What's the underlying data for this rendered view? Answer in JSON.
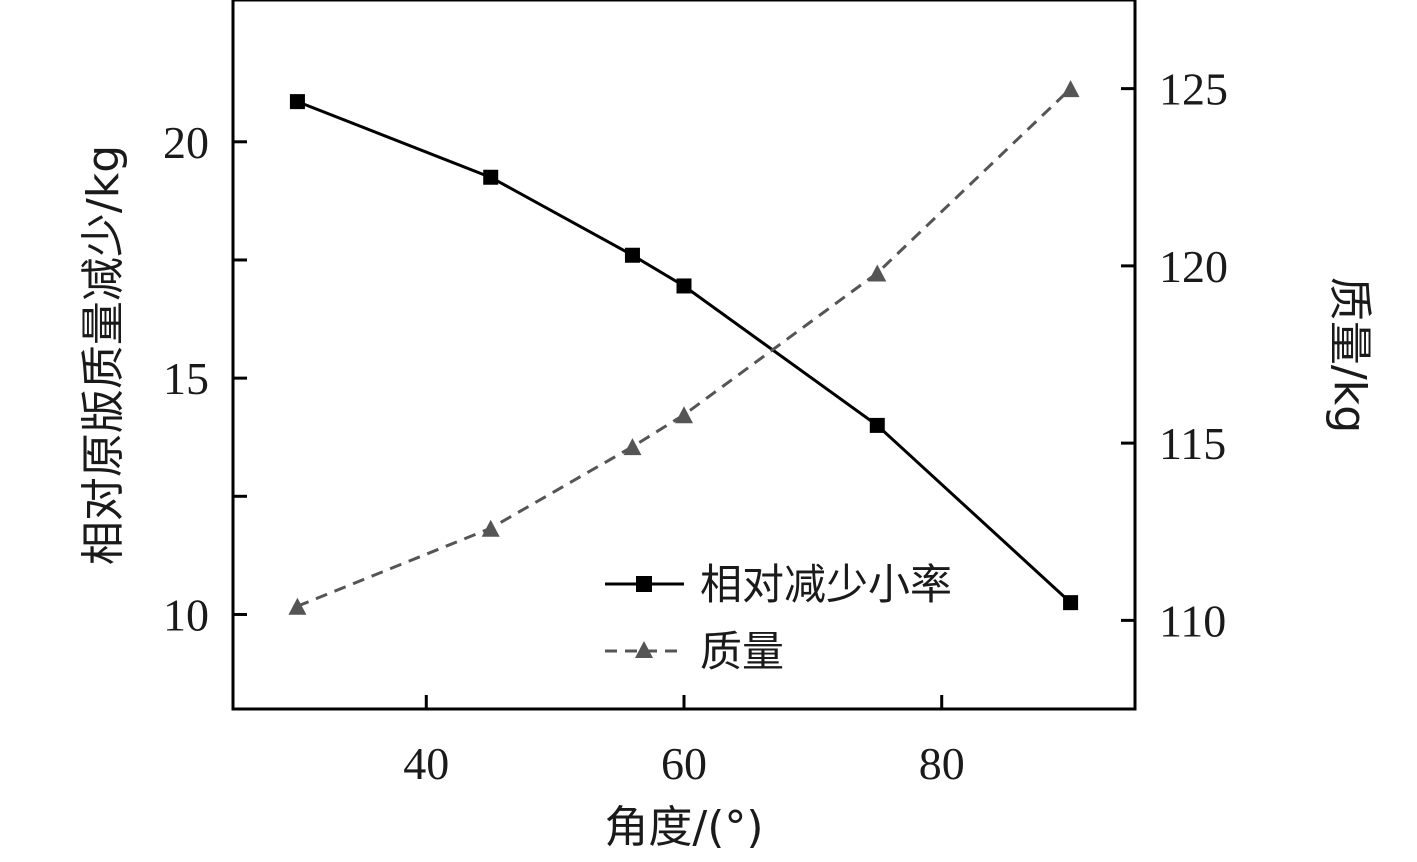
{
  "chart_data": {
    "type": "line",
    "xlabel": "角度/(°)",
    "ylabel_left": "相对原版质量减少/kg",
    "ylabel_right": "质量/kg",
    "xlim": [
      25,
      95
    ],
    "ylim_left": [
      8,
      23
    ],
    "ylim_right": [
      107.5,
      127.5
    ],
    "x_ticks": [
      40,
      60,
      80
    ],
    "y_left_ticks": [
      10,
      15,
      20
    ],
    "y_left_minor_ticks": [
      12.5,
      17.5
    ],
    "y_right_ticks": [
      110,
      115,
      120,
      125
    ],
    "grid": false,
    "legend_position": "bottom-right",
    "series": [
      {
        "name": "相对减少小率",
        "axis": "left",
        "style": "solid",
        "marker": "square",
        "color": "#000000",
        "x": [
          30,
          45,
          56,
          60,
          75,
          90
        ],
        "y": [
          20.85,
          19.25,
          17.6,
          16.95,
          14.0,
          10.25
        ]
      },
      {
        "name": "质量",
        "axis": "right",
        "style": "dashed",
        "marker": "triangle",
        "color": "#555555",
        "x": [
          30,
          45,
          56,
          60,
          75,
          90
        ],
        "y": [
          110.4,
          112.6,
          114.9,
          115.8,
          119.8,
          125.0
        ]
      }
    ]
  }
}
